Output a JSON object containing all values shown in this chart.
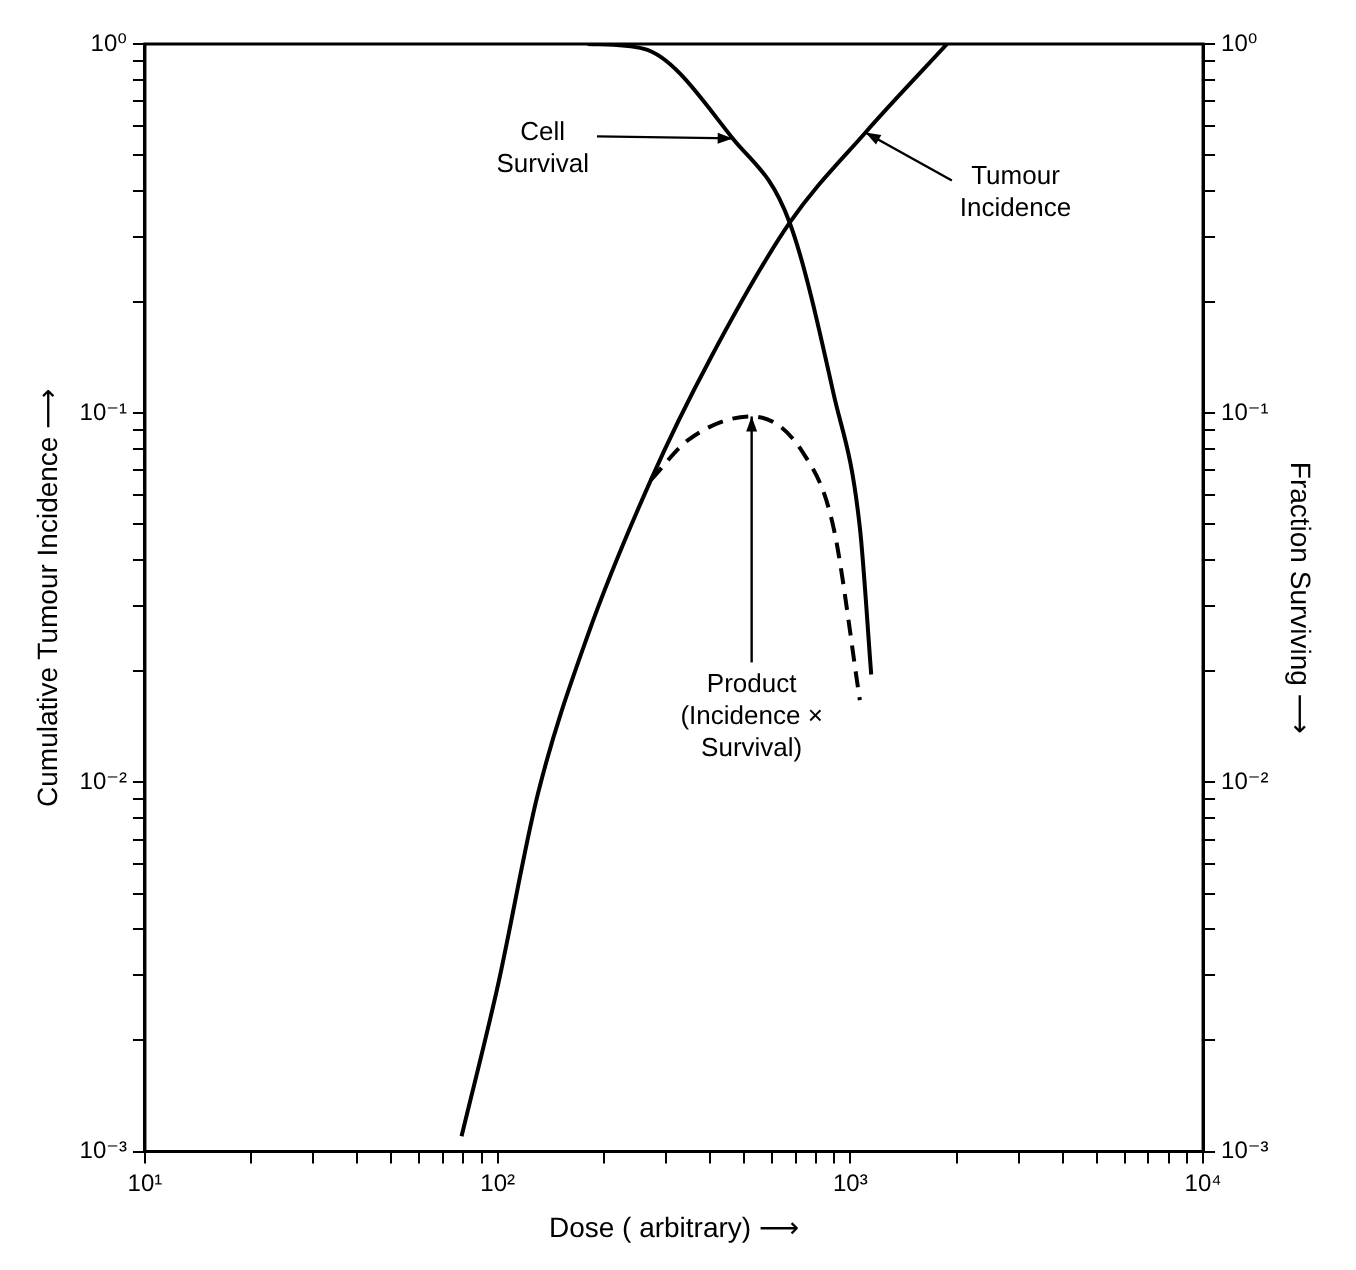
{
  "chart_data": {
    "type": "line",
    "xlabel": "Dose ( arbitrary) ⟶",
    "ylabel": "Cumulative Tumour Incidence ⟶",
    "y2label": "Fraction Surviving ⟶",
    "log": "xy",
    "grid": false,
    "legend": false,
    "marker": "none",
    "xlim": [
      10,
      10000
    ],
    "ylim": [
      0.001,
      1
    ],
    "xticks": [
      {
        "value": 10,
        "label": "10¹"
      },
      {
        "value": 20,
        "label": null
      },
      {
        "value": 30,
        "label": null
      },
      {
        "value": 40,
        "label": null
      },
      {
        "value": 50,
        "label": null
      },
      {
        "value": 60,
        "label": null
      },
      {
        "value": 70,
        "label": null
      },
      {
        "value": 80,
        "label": null
      },
      {
        "value": 90,
        "label": null
      },
      {
        "value": 100,
        "label": "10²"
      },
      {
        "value": 200,
        "label": null
      },
      {
        "value": 300,
        "label": null
      },
      {
        "value": 400,
        "label": null
      },
      {
        "value": 500,
        "label": null
      },
      {
        "value": 600,
        "label": null
      },
      {
        "value": 700,
        "label": null
      },
      {
        "value": 800,
        "label": null
      },
      {
        "value": 900,
        "label": null
      },
      {
        "value": 1000,
        "label": "10³"
      },
      {
        "value": 2000,
        "label": null
      },
      {
        "value": 3000,
        "label": null
      },
      {
        "value": 4000,
        "label": null
      },
      {
        "value": 5000,
        "label": null
      },
      {
        "value": 6000,
        "label": null
      },
      {
        "value": 7000,
        "label": null
      },
      {
        "value": 8000,
        "label": null
      },
      {
        "value": 9000,
        "label": null
      },
      {
        "value": 10000,
        "label": "10⁴"
      }
    ],
    "yticks": [
      {
        "value": 0.001,
        "label": "10⁻³"
      },
      {
        "value": 0.002,
        "label": null
      },
      {
        "value": 0.003,
        "label": null
      },
      {
        "value": 0.004,
        "label": null
      },
      {
        "value": 0.005,
        "label": null
      },
      {
        "value": 0.006,
        "label": null
      },
      {
        "value": 0.007,
        "label": null
      },
      {
        "value": 0.008,
        "label": null
      },
      {
        "value": 0.009,
        "label": null
      },
      {
        "value": 0.01,
        "label": "10⁻²"
      },
      {
        "value": 0.02,
        "label": null
      },
      {
        "value": 0.03,
        "label": null
      },
      {
        "value": 0.04,
        "label": null
      },
      {
        "value": 0.05,
        "label": null
      },
      {
        "value": 0.06,
        "label": null
      },
      {
        "value": 0.07,
        "label": null
      },
      {
        "value": 0.08,
        "label": null
      },
      {
        "value": 0.09,
        "label": null
      },
      {
        "value": 0.1,
        "label": "10⁻¹"
      },
      {
        "value": 0.2,
        "label": null
      },
      {
        "value": 0.3,
        "label": null
      },
      {
        "value": 0.4,
        "label": null
      },
      {
        "value": 0.5,
        "label": null
      },
      {
        "value": 0.6,
        "label": null
      },
      {
        "value": 0.7,
        "label": null
      },
      {
        "value": 0.8,
        "label": null
      },
      {
        "value": 0.9,
        "label": null
      },
      {
        "value": 1,
        "label": "10⁰"
      }
    ],
    "series": [
      {
        "name": "Cell Survival",
        "color": "#000000",
        "line_style": "solid",
        "x": [
          180,
          260,
          464,
          673,
          896,
          1064,
          1146
        ],
        "values": [
          1,
          0.97,
          0.555,
          0.328,
          0.113,
          0.049,
          0.0196
        ]
      },
      {
        "name": "Tumour Incidence",
        "color": "#000000",
        "line_style": "solid",
        "x": [
          79,
          100,
          130,
          180,
          272,
          400,
          673,
          1104,
          1880
        ],
        "values": [
          0.0011,
          0.0028,
          0.0093,
          0.025,
          0.066,
          0.14,
          0.328,
          0.576,
          1
        ]
      },
      {
        "name": "Product (Incidence × Survival)",
        "color": "#000000",
        "line_style": "dashed",
        "x": [
          272,
          349,
          525,
          735,
          896,
          1064
        ],
        "values": [
          0.066,
          0.085,
          0.098,
          0.078,
          0.049,
          0.0167
        ]
      }
    ]
  }
}
